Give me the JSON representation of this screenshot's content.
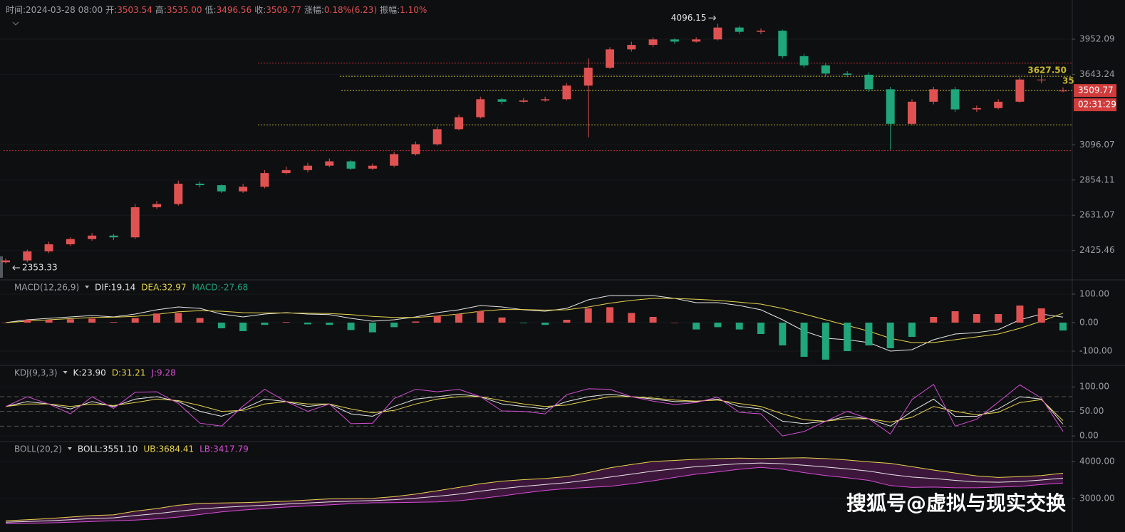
{
  "header": {
    "fields": [
      {
        "label": "时间:",
        "value": "2024-03-28 08:00",
        "color": "#9aa0a6"
      },
      {
        "label": "开:",
        "value": "3503.54",
        "color": "#e05252"
      },
      {
        "label": "高:",
        "value": "3535.00",
        "color": "#e05252"
      },
      {
        "label": "低:",
        "value": "3496.56",
        "color": "#e05252"
      },
      {
        "label": "收:",
        "value": "3509.77",
        "color": "#e05252"
      },
      {
        "label": "涨幅:",
        "value": "0.18%(6.23)",
        "color": "#e05252"
      },
      {
        "label": "振幅:",
        "value": "1.10%",
        "color": "#e05252"
      }
    ]
  },
  "chart_data": [
    {
      "type": "candlestick",
      "log": true,
      "up_color": "#e05252",
      "down_color": "#1fa67a",
      "ylim": [
        2277,
        4256
      ],
      "yticks": [
        2425.46,
        2631.07,
        2854.11,
        3096.07,
        3643.24,
        3952.09
      ],
      "open": [
        2360,
        2370,
        2420,
        2460,
        2490,
        2510,
        2500,
        2680,
        2700,
        2830,
        2820,
        2780,
        2810,
        2900,
        2920,
        2950,
        2980,
        2930,
        2950,
        3030,
        3100,
        3210,
        3300,
        3440,
        3420,
        3430,
        3440,
        3550,
        3700,
        3860,
        3900,
        3950,
        3930,
        3950,
        4060,
        4020,
        4030,
        3800,
        3720,
        3650,
        3640,
        3520,
        3250,
        3420,
        3520,
        3360,
        3370,
        3420,
        3600,
        3503.54
      ],
      "high": [
        2380,
        2430,
        2475,
        2500,
        2525,
        2520,
        2700,
        2720,
        2850,
        2845,
        2825,
        2830,
        2920,
        2945,
        2970,
        3000,
        2990,
        2965,
        3045,
        3120,
        3230,
        3320,
        3460,
        3450,
        3450,
        3460,
        3570,
        3780,
        3880,
        3930,
        3970,
        3960,
        3970,
        4096.15,
        4075,
        4050,
        4040,
        3820,
        3740,
        3670,
        3660,
        3540,
        3440,
        3540,
        3540,
        3390,
        3440,
        3620,
        3640,
        3535
      ],
      "low": [
        2353.33,
        2360,
        2410,
        2450,
        2480,
        2485,
        2490,
        2670,
        2690,
        2805,
        2770,
        2770,
        2800,
        2890,
        2905,
        2940,
        2920,
        2920,
        2940,
        3020,
        3090,
        3200,
        3290,
        3400,
        3410,
        3420,
        3430,
        3150,
        3690,
        3840,
        3880,
        3910,
        3920,
        3940,
        4000,
        4000,
        3780,
        3700,
        3630,
        3620,
        3500,
        3060,
        3240,
        3400,
        3340,
        3340,
        3360,
        3410,
        3570,
        3496.56
      ],
      "close": [
        2370,
        2420,
        2460,
        2490,
        2510,
        2500,
        2680,
        2700,
        2830,
        2820,
        2780,
        2810,
        2900,
        2920,
        2950,
        2980,
        2930,
        2950,
        3030,
        3100,
        3210,
        3300,
        3440,
        3420,
        3430,
        3440,
        3550,
        3700,
        3860,
        3900,
        3950,
        3930,
        3950,
        4060,
        4020,
        4030,
        3800,
        3720,
        3650,
        3640,
        3520,
        3250,
        3420,
        3520,
        3360,
        3370,
        3420,
        3600,
        3600,
        3509.77
      ],
      "high_label": "4096.15",
      "low_label": "2353.33",
      "levels": [
        {
          "value": 3739,
          "color": "#c0303a"
        },
        {
          "value": 3627.5,
          "color": "#c8b830",
          "label": "3627.50",
          "label_style": "text"
        },
        {
          "value": 3509.77,
          "color": "#c8b830",
          "label": "3509.77",
          "label_style": "box"
        },
        {
          "value": 3242,
          "color": "#c8b830"
        },
        {
          "value": 3054,
          "color": "#c0303a"
        }
      ],
      "clipped_label": "35",
      "countdown": "02:31:29"
    },
    {
      "type": "macd",
      "title": "MACD(12,26,9)",
      "up_color": "#e05252",
      "down_color": "#1fa67a",
      "ylim": [
        -140,
        140
      ],
      "yticks": [
        {
          "value": 100,
          "label": "100.00"
        },
        {
          "value": 0,
          "label": "0.00"
        },
        {
          "value": -100,
          "label": "-100.00"
        }
      ],
      "series": [
        {
          "name": "DIF:19.14",
          "color": "#e6e6e6",
          "values": [
            0,
            10,
            15,
            20,
            25,
            20,
            30,
            45,
            55,
            50,
            30,
            20,
            30,
            35,
            30,
            28,
            15,
            5,
            10,
            20,
            35,
            45,
            60,
            55,
            45,
            40,
            50,
            80,
            95,
            95,
            95,
            85,
            70,
            70,
            60,
            45,
            10,
            -30,
            -55,
            -60,
            -70,
            -100,
            -95,
            -60,
            -40,
            -35,
            -25,
            10,
            30,
            19.14
          ]
        },
        {
          "name": "DEA:32.97",
          "color": "#e8d44d",
          "values": [
            0,
            5,
            10,
            14,
            18,
            19,
            22,
            29,
            38,
            42,
            40,
            35,
            34,
            34,
            33,
            32,
            28,
            22,
            18,
            18,
            23,
            30,
            40,
            46,
            46,
            44,
            45,
            55,
            68,
            78,
            85,
            85,
            82,
            78,
            72,
            65,
            50,
            30,
            10,
            -10,
            -30,
            -55,
            -70,
            -70,
            -60,
            -50,
            -40,
            -20,
            5,
            32.97
          ]
        },
        {
          "name": "MACD:-27.68",
          "color": "#1fa67a",
          "style": "histogram",
          "values": [
            0,
            10,
            10,
            12,
            14,
            2,
            16,
            32,
            34,
            16,
            -20,
            -30,
            -8,
            2,
            -6,
            -8,
            -26,
            -34,
            -16,
            4,
            24,
            30,
            40,
            18,
            -2,
            -8,
            10,
            50,
            54,
            34,
            20,
            0,
            -24,
            -16,
            -24,
            -40,
            -80,
            -120,
            -130,
            -100,
            -80,
            -90,
            -50,
            20,
            40,
            30,
            30,
            60,
            50,
            -27.68
          ]
        }
      ]
    },
    {
      "type": "kdj",
      "title": "KDJ(9,3,3)",
      "ylim": [
        -10,
        138
      ],
      "levels": [
        80,
        50,
        20
      ],
      "yticks": [
        {
          "value": 100,
          "label": "100.00"
        },
        {
          "value": 50,
          "label": "50.00"
        },
        {
          "value": 0,
          "label": "0.00"
        }
      ],
      "series": [
        {
          "name": "K:23.90",
          "color": "#e6e6e6",
          "values": [
            60,
            70,
            65,
            55,
            70,
            60,
            75,
            80,
            70,
            50,
            40,
            55,
            75,
            70,
            60,
            65,
            45,
            40,
            60,
            75,
            80,
            85,
            80,
            65,
            60,
            55,
            70,
            80,
            85,
            80,
            75,
            70,
            70,
            75,
            60,
            55,
            30,
            25,
            30,
            40,
            35,
            20,
            50,
            75,
            40,
            40,
            55,
            80,
            75,
            23.9
          ]
        },
        {
          "name": "D:31.21",
          "color": "#e8d44d",
          "values": [
            60,
            65,
            65,
            60,
            65,
            62,
            68,
            75,
            72,
            62,
            50,
            52,
            65,
            70,
            65,
            65,
            55,
            47,
            52,
            65,
            75,
            80,
            80,
            72,
            65,
            60,
            63,
            72,
            80,
            80,
            77,
            73,
            71,
            73,
            66,
            60,
            45,
            33,
            30,
            35,
            35,
            28,
            38,
            60,
            50,
            43,
            48,
            68,
            74,
            31.21
          ]
        },
        {
          "name": "J:9.28",
          "color": "#d64fd6",
          "values": [
            60,
            80,
            65,
            45,
            80,
            56,
            89,
            90,
            66,
            26,
            20,
            61,
            95,
            70,
            50,
            65,
            25,
            26,
            76,
            95,
            90,
            95,
            80,
            51,
            50,
            45,
            84,
            96,
            95,
            80,
            71,
            64,
            68,
            79,
            48,
            45,
            0,
            9,
            30,
            50,
            35,
            4,
            74,
            105,
            20,
            34,
            69,
            104,
            77,
            9.28
          ]
        }
      ]
    },
    {
      "type": "boll",
      "title": "BOLL(20,2)",
      "ylim": [
        2135,
        4462
      ],
      "band_color": "#4a1846",
      "yticks": [
        {
          "value": 4000,
          "label": "4000.00"
        },
        {
          "value": 3000,
          "label": "3000.00"
        }
      ],
      "series": [
        {
          "name": "BOLL:3551.10",
          "color": "#e6e6e6",
          "values": [
            2360,
            2380,
            2400,
            2430,
            2460,
            2480,
            2540,
            2590,
            2660,
            2720,
            2760,
            2790,
            2820,
            2850,
            2880,
            2910,
            2930,
            2945,
            2970,
            3010,
            3060,
            3120,
            3200,
            3270,
            3330,
            3380,
            3430,
            3500,
            3580,
            3660,
            3740,
            3800,
            3860,
            3900,
            3940,
            3960,
            3940,
            3900,
            3850,
            3800,
            3740,
            3650,
            3580,
            3540,
            3490,
            3450,
            3440,
            3460,
            3500,
            3551.1
          ]
        },
        {
          "name": "UB:3684.41",
          "color": "#e8d44d",
          "values": [
            2400,
            2430,
            2460,
            2500,
            2540,
            2560,
            2660,
            2730,
            2820,
            2870,
            2880,
            2890,
            2910,
            2930,
            2960,
            2990,
            3000,
            3005,
            3050,
            3120,
            3210,
            3300,
            3400,
            3470,
            3510,
            3540,
            3590,
            3700,
            3830,
            3920,
            4000,
            4030,
            4060,
            4080,
            4090,
            4080,
            4090,
            4100,
            4080,
            4040,
            3990,
            3950,
            3860,
            3770,
            3690,
            3610,
            3570,
            3590,
            3620,
            3684.41
          ]
        },
        {
          "name": "LB:3417.79",
          "color": "#d64fd6",
          "values": [
            2320,
            2330,
            2340,
            2360,
            2380,
            2400,
            2420,
            2450,
            2500,
            2570,
            2640,
            2690,
            2730,
            2770,
            2800,
            2830,
            2860,
            2885,
            2890,
            2900,
            2910,
            2940,
            3000,
            3070,
            3150,
            3220,
            3270,
            3300,
            3330,
            3400,
            3480,
            3570,
            3660,
            3720,
            3790,
            3840,
            3790,
            3700,
            3620,
            3560,
            3490,
            3350,
            3300,
            3310,
            3290,
            3290,
            3310,
            3330,
            3380,
            3417.79
          ]
        }
      ]
    }
  ],
  "watermark": "搜狐号@虚拟与现实交换"
}
